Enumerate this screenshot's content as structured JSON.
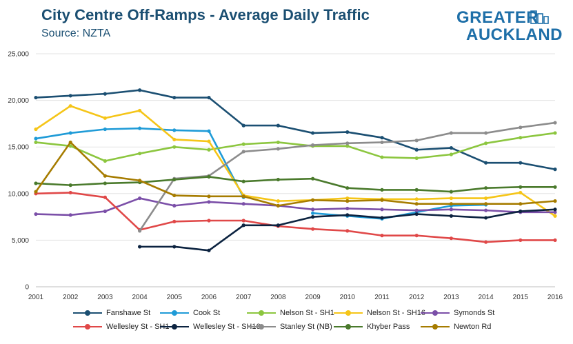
{
  "header": {
    "title": "City Centre Off-Ramps - Average Daily Traffic",
    "subtitle": "Source: NZTA"
  },
  "logo": {
    "line1": "GREATER",
    "line2": "AUCKLAND",
    "color": "#1e6fa8"
  },
  "chart_data": {
    "type": "line",
    "title": "City Centre Off-Ramps - Average Daily Traffic",
    "subtitle": "Source: NZTA",
    "x": [
      "2001",
      "2002",
      "2003",
      "2004",
      "2005",
      "2006",
      "2007",
      "2008",
      "2009",
      "2010",
      "2011",
      "2012",
      "2013",
      "2014",
      "2015",
      "2016"
    ],
    "ylim": [
      0,
      25000
    ],
    "yticks": [
      "0",
      "5,000",
      "10,000",
      "15,000",
      "20,000",
      "25,000"
    ],
    "grid": true,
    "legend_position": "bottom",
    "series": [
      {
        "name": "Fanshawe St",
        "color": "#1b4f72",
        "values": [
          20300,
          20500,
          20700,
          21100,
          20300,
          20300,
          17300,
          17300,
          16500,
          16600,
          16000,
          14700,
          14900,
          13300,
          13300,
          12600
        ]
      },
      {
        "name": "Cook St",
        "color": "#1f9bd7",
        "values": [
          15900,
          16500,
          16900,
          17000,
          16800,
          16700,
          9600,
          null,
          7900,
          7600,
          7300,
          8000,
          8700,
          8800,
          null,
          null
        ]
      },
      {
        "name": "Nelson St - SH1",
        "color": "#8cc63f",
        "values": [
          15500,
          15100,
          13500,
          14300,
          15000,
          14700,
          15300,
          15500,
          15100,
          15100,
          13900,
          13800,
          14200,
          15400,
          16000,
          16500
        ]
      },
      {
        "name": "Nelson St - SH16",
        "color": "#f5c518",
        "values": [
          16900,
          19400,
          18100,
          18900,
          15800,
          15600,
          9800,
          9200,
          9300,
          9500,
          9400,
          9400,
          9500,
          9500,
          10100,
          7600
        ]
      },
      {
        "name": "Symonds St",
        "color": "#7b4fa8",
        "values": [
          7800,
          7700,
          8100,
          9500,
          8700,
          9100,
          8900,
          8700,
          8300,
          8400,
          8300,
          8200,
          8300,
          8200,
          8000,
          8000
        ]
      },
      {
        "name": "Wellesley St - SH1",
        "color": "#e04848",
        "values": [
          10000,
          10100,
          9600,
          6100,
          7000,
          7100,
          7100,
          6500,
          6200,
          6000,
          5500,
          5500,
          5200,
          4800,
          5000,
          5000
        ]
      },
      {
        "name": "Wellesley St - SH16",
        "color": "#0c2340",
        "values": [
          null,
          null,
          null,
          4300,
          4300,
          3900,
          6600,
          6600,
          7500,
          7700,
          7400,
          7800,
          7600,
          7400,
          8100,
          8300
        ]
      },
      {
        "name": "Stanley St (NB)",
        "color": "#8c8c8c",
        "values": [
          null,
          null,
          null,
          6000,
          11600,
          11900,
          14500,
          14800,
          15200,
          15400,
          15500,
          15700,
          16500,
          16500,
          17100,
          17600
        ]
      },
      {
        "name": "Khyber Pass",
        "color": "#4a7a2c",
        "values": [
          11100,
          10900,
          11100,
          11200,
          11500,
          11800,
          11300,
          11500,
          11600,
          10600,
          10400,
          10400,
          10200,
          10600,
          10700,
          10700
        ]
      },
      {
        "name": "Newton Rd",
        "color": "#a67c00",
        "values": [
          10200,
          15500,
          11900,
          11400,
          9800,
          9700,
          9700,
          8700,
          9300,
          9200,
          9300,
          8900,
          8900,
          8900,
          8900,
          9200
        ]
      }
    ]
  }
}
